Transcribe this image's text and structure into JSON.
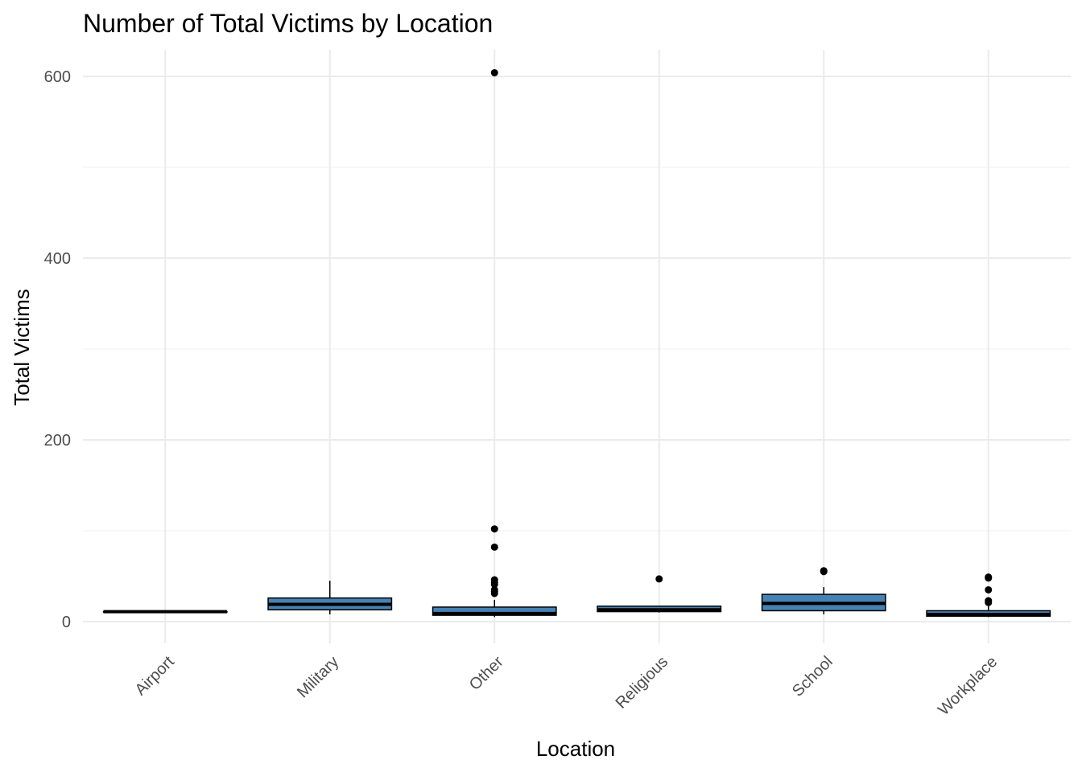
{
  "chart_data": {
    "type": "boxplot",
    "title": "Number of Total Victims by Location",
    "xlabel": "Location",
    "ylabel": "Total Victims",
    "ylim": [
      -30,
      630
    ],
    "y_ticks": [
      0,
      200,
      400,
      600
    ],
    "y_minor_ticks": [
      100,
      300,
      500
    ],
    "grid": true,
    "box_fill": "#4682b4",
    "box_stroke": "#000000",
    "categories": [
      "Airport",
      "Military",
      "Other",
      "Religious",
      "School",
      "Workplace"
    ],
    "boxes": [
      {
        "category": "Airport",
        "min": 11,
        "q1": 11,
        "median": 11,
        "q3": 11,
        "max": 11,
        "outliers": []
      },
      {
        "category": "Military",
        "min": 8,
        "q1": 13,
        "median": 19,
        "q3": 26,
        "max": 45,
        "outliers": []
      },
      {
        "category": "Other",
        "min": 5,
        "q1": 7,
        "median": 9,
        "q3": 16,
        "max": 24,
        "outliers": [
          604,
          102,
          82,
          46,
          43,
          41,
          35,
          33,
          31
        ]
      },
      {
        "category": "Religious",
        "min": 10,
        "q1": 11,
        "median": 13,
        "q3": 17,
        "max": 17,
        "outliers": [
          47
        ]
      },
      {
        "category": "School",
        "min": 8,
        "q1": 12,
        "median": 20,
        "q3": 30,
        "max": 38,
        "outliers": [
          56,
          55
        ]
      },
      {
        "category": "Workplace",
        "min": 5,
        "q1": 6,
        "median": 8,
        "q3": 12,
        "max": 17,
        "outliers": [
          49,
          48,
          35,
          23,
          21
        ]
      }
    ]
  }
}
